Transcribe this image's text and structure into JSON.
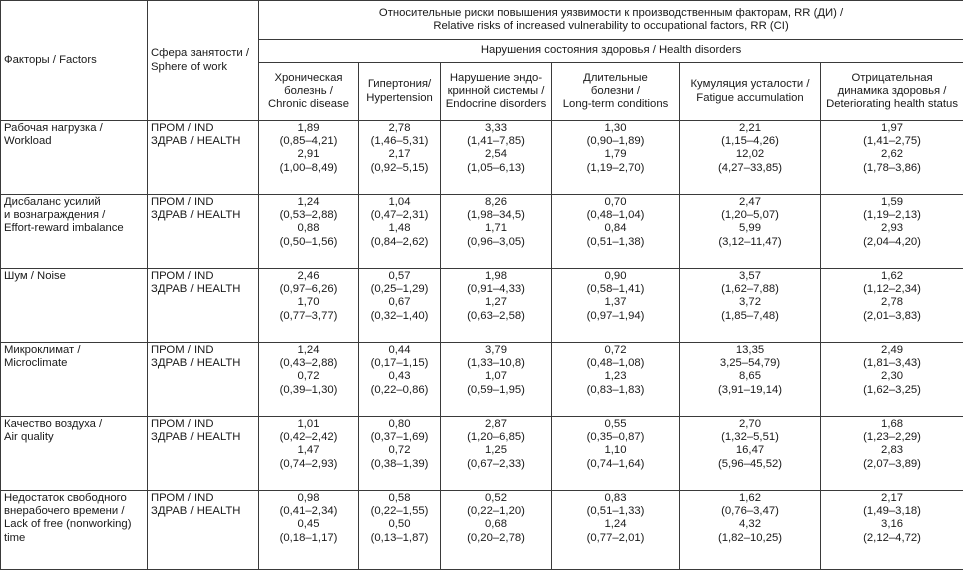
{
  "header": {
    "factors": "Факторы / Factors",
    "sphere": [
      "Сфера занятости /",
      "Sphere of work"
    ],
    "title": [
      "Относительные риски повышения уязвимости к производственным факторам, RR (ДИ) /",
      "Relative risks of increased vulnerability to occupational factors, RR (CI)"
    ],
    "subtitle": "Нарушения состояния здоровья / Health disorders",
    "columns": [
      [
        "Хроническая",
        "болезнь /",
        "Chronic disease"
      ],
      [
        "Гипертония/",
        "Hypertension"
      ],
      [
        "Нарушение эндо-",
        "кринной системы /",
        "Endocrine disorders"
      ],
      [
        "Длительные",
        "болезни /",
        "Long-term conditions"
      ],
      [
        "Кумуляция усталости /",
        "Fatigue accumulation"
      ],
      [
        "Отрицательная",
        "динамика здоровья /",
        "Deteriorating health status"
      ]
    ]
  },
  "rows": [
    {
      "factor": [
        "Рабочая нагрузка /",
        "Workload"
      ],
      "sphere": [
        "ПРОМ / IND",
        "ЗДРАВ / HEALTH"
      ],
      "cells": [
        [
          "1,89",
          "(0,85–4,21)",
          "2,91",
          "(1,00–8,49)"
        ],
        [
          "2,78",
          "(1,46–5,31)",
          "2,17",
          "(0,92–5,15)"
        ],
        [
          "3,33",
          "(1,41–7,85)",
          "2,54",
          "(1,05–6,13)"
        ],
        [
          "1,30",
          "(0,90–1,89)",
          "1,79",
          "(1,19–2,70)"
        ],
        [
          "2,21",
          "(1,15–4,26)",
          "12,02",
          "(4,27–33,85)"
        ],
        [
          "1,97",
          "(1,41–2,75)",
          "2,62",
          "(1,78–3,86)"
        ]
      ]
    },
    {
      "factor": [
        "Дисбаланс усилий",
        "и вознаграждения /",
        "Effort-reward imbalance"
      ],
      "sphere": [
        "ПРОМ / IND",
        "ЗДРАВ / HEALTH"
      ],
      "cells": [
        [
          "1,24",
          "(0,53–2,88)",
          "0,88",
          "(0,50–1,56)"
        ],
        [
          "1,04",
          "(0,47–2,31)",
          "1,48",
          "(0,84–2,62)"
        ],
        [
          "8,26",
          "(1,98–34,5)",
          "1,71",
          "(0,96–3,05)"
        ],
        [
          "0,70",
          "(0,48–1,04)",
          "0,84",
          "(0,51–1,38)"
        ],
        [
          "2,47",
          "(1,20–5,07)",
          "5,99",
          "(3,12–11,47)"
        ],
        [
          "1,59",
          "(1,19–2,13)",
          "2,93",
          "(2,04–4,20)"
        ]
      ]
    },
    {
      "factor": [
        "Шум / Noise"
      ],
      "sphere": [
        "ПРОМ / IND",
        "ЗДРАВ / HEALTH"
      ],
      "cells": [
        [
          "2,46",
          "(0,97–6,26)",
          "1,70",
          "(0,77–3,77)"
        ],
        [
          "0,57",
          "(0,25–1,29)",
          "0,67",
          "(0,32–1,40)"
        ],
        [
          "1,98",
          "(0,91–4,33)",
          "1,27",
          "(0,63–2,58)"
        ],
        [
          "0,90",
          "(0,58–1,41)",
          "1,37",
          "(0,97–1,94)"
        ],
        [
          "3,57",
          "(1,62–7,88)",
          "3,72",
          "(1,85–7,48)"
        ],
        [
          "1,62",
          "(1,12–2,34)",
          "2,78",
          "(2,01–3,83)"
        ]
      ]
    },
    {
      "factor": [
        "Микроклимат /",
        "Microclimate"
      ],
      "sphere": [
        "ПРОМ / IND",
        "ЗДРАВ / HEALTH"
      ],
      "cells": [
        [
          "1,24",
          "(0,43–2,88)",
          "0,72",
          "(0,39–1,30)"
        ],
        [
          "0,44",
          "(0,17–1,15)",
          "0,43",
          "(0,22–0,86)"
        ],
        [
          "3,79",
          "(1,33–10,8)",
          "1,07",
          "(0,59–1,95)"
        ],
        [
          "0,72",
          "(0,48–1,08)",
          "1,23",
          "(0,83–1,83)"
        ],
        [
          "13,35",
          "3,25–54,79)",
          "8,65",
          "(3,91–19,14)"
        ],
        [
          "2,49",
          "(1,81–3,43)",
          "2,30",
          "(1,62–3,25)"
        ]
      ]
    },
    {
      "factor": [
        "Качество воздуха /",
        "Air quality"
      ],
      "sphere": [
        "ПРОМ / IND",
        "ЗДРАВ / HEALTH"
      ],
      "cells": [
        [
          "1,01",
          "(0,42–2,42)",
          "1,47",
          "(0,74–2,93)"
        ],
        [
          "0,80",
          "(0,37–1,69)",
          "0,72",
          "(0,38–1,39)"
        ],
        [
          "2,87",
          "(1,20–6,85)",
          "1,25",
          "(0,67–2,33)"
        ],
        [
          "0,55",
          "(0,35–0,87)",
          "1,10",
          "(0,74–1,64)"
        ],
        [
          "2,70",
          "(1,32–5,51)",
          "16,47",
          "(5,96–45,52)"
        ],
        [
          "1,68",
          "(1,23–2,29)",
          "2,83",
          "(2,07–3,89)"
        ]
      ]
    },
    {
      "factor": [
        "Недостаток свободного",
        "внерабочего времени /",
        "Lack of free (nonworking)",
        "time"
      ],
      "sphere": [
        "ПРОМ / IND",
        "ЗДРАВ / HEALTH"
      ],
      "cells": [
        [
          "0,98",
          "(0,41–2,34)",
          "0,45",
          "(0,18–1,17)"
        ],
        [
          "0,58",
          "(0,22–1,55)",
          "0,50",
          "(0,13–1,87)"
        ],
        [
          "0,52",
          "(0,22–1,20)",
          "0,68",
          "(0,20–2,78)"
        ],
        [
          "0,83",
          "(0,51–1,33)",
          "1,24",
          "(0,77–2,01)"
        ],
        [
          "1,62",
          "(0,76–3,47)",
          "4,32",
          "(1,82–10,25)"
        ],
        [
          "2,17",
          "(1,49–3,18)",
          "3,16",
          "(2,12–4,72)"
        ]
      ]
    }
  ]
}
